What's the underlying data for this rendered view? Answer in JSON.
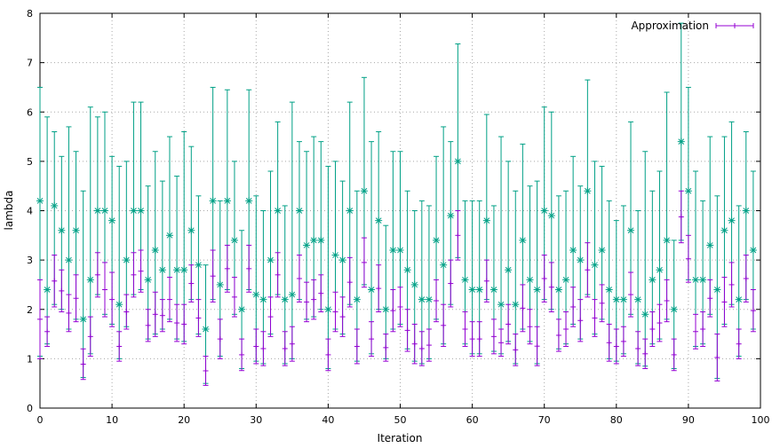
{
  "chart_data": {
    "type": "errorbar",
    "title": "",
    "xlabel": "Iteration",
    "ylabel": "lambda",
    "xlim": [
      0,
      100
    ],
    "ylim": [
      0,
      8
    ],
    "xticks": [
      0,
      10,
      20,
      30,
      40,
      50,
      60,
      70,
      80,
      90,
      100
    ],
    "yticks": [
      0,
      1,
      2,
      3,
      4,
      5,
      6,
      7,
      8
    ],
    "grid": true,
    "legend": {
      "label": "Approximation",
      "position": "top-right"
    },
    "colors": {
      "approximation": "#9400d3",
      "range_bars": "#00a086",
      "grid": "#a8a8a8",
      "axis": "#000000",
      "text": "#000000",
      "background": "#ffffff"
    },
    "series": [
      {
        "name": "range-errorbars",
        "marker": "asterisk",
        "color": "#00a086",
        "points_format": [
          "center",
          "low",
          "high"
        ],
        "points": [
          [
            4.2,
            1.05,
            6.5
          ],
          [
            2.4,
            1.3,
            5.9
          ],
          [
            4.1,
            2.1,
            5.6
          ],
          [
            3.6,
            2.0,
            5.1
          ],
          [
            3.0,
            1.6,
            5.7
          ],
          [
            3.6,
            1.8,
            5.2
          ],
          [
            1.8,
            0.62,
            4.4
          ],
          [
            2.6,
            1.1,
            6.1
          ],
          [
            4.0,
            2.3,
            5.9
          ],
          [
            4.0,
            1.9,
            6.0
          ],
          [
            3.8,
            1.7,
            5.1
          ],
          [
            2.1,
            1.0,
            4.9
          ],
          [
            3.0,
            1.65,
            5.0
          ],
          [
            4.0,
            2.3,
            6.2
          ],
          [
            4.0,
            2.4,
            6.2
          ],
          [
            2.6,
            1.4,
            4.5
          ],
          [
            3.2,
            1.5,
            5.2
          ],
          [
            2.8,
            1.6,
            4.6
          ],
          [
            3.5,
            1.8,
            5.5
          ],
          [
            2.8,
            1.4,
            4.7
          ],
          [
            2.8,
            1.35,
            5.6
          ],
          [
            3.6,
            2.2,
            5.3
          ],
          [
            2.9,
            1.5,
            4.3
          ],
          [
            1.6,
            0.5,
            2.9
          ],
          [
            4.2,
            2.2,
            6.5
          ],
          [
            2.5,
            1.05,
            4.2
          ],
          [
            4.2,
            2.4,
            6.45
          ],
          [
            3.4,
            1.9,
            5.0
          ],
          [
            2.0,
            0.8,
            3.6
          ],
          [
            4.2,
            2.4,
            6.45
          ],
          [
            2.3,
            0.95,
            4.3
          ],
          [
            2.2,
            0.9,
            4.0
          ],
          [
            3.0,
            1.5,
            4.8
          ],
          [
            4.0,
            2.3,
            5.8
          ],
          [
            2.2,
            0.9,
            4.1
          ],
          [
            2.3,
            1.0,
            6.2
          ],
          [
            4.0,
            2.2,
            5.4
          ],
          [
            3.3,
            1.8,
            5.2
          ],
          [
            3.4,
            1.85,
            5.5
          ],
          [
            3.4,
            2.0,
            5.4
          ],
          [
            2.0,
            0.8,
            4.9
          ],
          [
            3.1,
            1.6,
            5.0
          ],
          [
            3.0,
            1.5,
            4.6
          ],
          [
            4.0,
            2.1,
            6.2
          ],
          [
            2.2,
            0.95,
            4.4
          ],
          [
            4.4,
            2.5,
            6.7
          ],
          [
            2.4,
            1.1,
            5.4
          ],
          [
            3.8,
            2.0,
            5.6
          ],
          [
            2.0,
            1.0,
            3.7
          ],
          [
            3.2,
            1.6,
            5.2
          ],
          [
            3.2,
            1.7,
            5.2
          ],
          [
            2.8,
            1.2,
            4.4
          ],
          [
            2.5,
            0.95,
            4.0
          ],
          [
            2.2,
            0.9,
            4.2
          ],
          [
            2.2,
            1.0,
            4.1
          ],
          [
            3.4,
            1.8,
            5.1
          ],
          [
            2.9,
            1.3,
            5.7
          ],
          [
            3.9,
            2.1,
            5.4
          ],
          [
            5.0,
            3.05,
            7.38
          ],
          [
            2.6,
            1.3,
            4.2
          ],
          [
            2.4,
            1.1,
            4.2
          ],
          [
            2.4,
            1.1,
            4.2
          ],
          [
            3.8,
            2.2,
            5.95
          ],
          [
            2.4,
            1.15,
            4.1
          ],
          [
            2.1,
            1.1,
            5.5
          ],
          [
            2.8,
            1.35,
            5.0
          ],
          [
            2.1,
            0.9,
            4.4
          ],
          [
            3.4,
            1.6,
            5.35
          ],
          [
            2.6,
            1.35,
            4.5
          ],
          [
            2.4,
            0.9,
            4.6
          ],
          [
            4.0,
            2.2,
            6.1
          ],
          [
            3.9,
            2.0,
            6.0
          ],
          [
            2.4,
            1.2,
            4.3
          ],
          [
            2.6,
            1.3,
            4.4
          ],
          [
            3.2,
            1.7,
            5.1
          ],
          [
            3.0,
            1.4,
            4.5
          ],
          [
            4.4,
            2.3,
            6.65
          ],
          [
            2.9,
            1.5,
            5.0
          ],
          [
            3.2,
            1.8,
            4.9
          ],
          [
            2.4,
            1.0,
            4.2
          ],
          [
            2.2,
            0.95,
            3.8
          ],
          [
            2.2,
            1.1,
            4.1
          ],
          [
            3.6,
            1.9,
            5.8
          ],
          [
            2.2,
            0.9,
            4.0
          ],
          [
            1.9,
            0.85,
            5.2
          ],
          [
            2.6,
            1.3,
            4.4
          ],
          [
            2.8,
            1.4,
            4.8
          ],
          [
            3.4,
            1.8,
            6.4
          ],
          [
            2.0,
            0.8,
            3.4
          ],
          [
            5.4,
            3.4,
            7.8
          ],
          [
            4.4,
            2.6,
            6.5
          ],
          [
            2.6,
            1.25,
            4.8
          ],
          [
            2.6,
            1.3,
            4.2
          ],
          [
            3.3,
            1.9,
            5.5
          ],
          [
            2.4,
            0.6,
            4.3
          ],
          [
            3.6,
            1.7,
            5.5
          ],
          [
            3.8,
            2.1,
            5.8
          ],
          [
            2.2,
            1.05,
            4.1
          ],
          [
            4.0,
            2.2,
            5.6
          ],
          [
            3.2,
            1.6,
            4.8
          ]
        ]
      },
      {
        "name": "approximation-errorbars",
        "marker": "plus",
        "color": "#9400d3",
        "points_format": [
          "low",
          "high"
        ],
        "points": [
          [
            1.0,
            2.6
          ],
          [
            1.25,
            1.85
          ],
          [
            2.05,
            3.1
          ],
          [
            1.95,
            2.8
          ],
          [
            1.55,
            2.3
          ],
          [
            1.75,
            2.7
          ],
          [
            0.58,
            1.2
          ],
          [
            1.05,
            1.85
          ],
          [
            2.25,
            3.15
          ],
          [
            1.85,
            2.95
          ],
          [
            1.65,
            2.75
          ],
          [
            0.95,
            1.55
          ],
          [
            1.6,
            2.3
          ],
          [
            2.25,
            3.15
          ],
          [
            2.35,
            3.2
          ],
          [
            1.35,
            2.0
          ],
          [
            1.45,
            2.35
          ],
          [
            1.55,
            2.2
          ],
          [
            1.75,
            2.65
          ],
          [
            1.35,
            2.1
          ],
          [
            1.3,
            2.1
          ],
          [
            2.15,
            2.9
          ],
          [
            1.45,
            2.2
          ],
          [
            0.46,
            1.05
          ],
          [
            2.15,
            3.2
          ],
          [
            1.0,
            1.8
          ],
          [
            2.35,
            3.3
          ],
          [
            1.85,
            2.65
          ],
          [
            0.76,
            1.4
          ],
          [
            2.35,
            3.3
          ],
          [
            0.9,
            1.6
          ],
          [
            0.86,
            1.55
          ],
          [
            1.45,
            2.25
          ],
          [
            2.25,
            3.15
          ],
          [
            0.86,
            1.55
          ],
          [
            0.95,
            1.65
          ],
          [
            2.15,
            3.1
          ],
          [
            1.75,
            2.55
          ],
          [
            1.8,
            2.6
          ],
          [
            1.95,
            2.7
          ],
          [
            0.76,
            1.4
          ],
          [
            1.55,
            2.35
          ],
          [
            1.45,
            2.25
          ],
          [
            2.05,
            3.05
          ],
          [
            0.9,
            1.6
          ],
          [
            2.45,
            3.45
          ],
          [
            1.05,
            1.75
          ],
          [
            1.95,
            2.9
          ],
          [
            0.95,
            1.5
          ],
          [
            1.55,
            2.4
          ],
          [
            1.65,
            2.45
          ],
          [
            1.15,
            2.0
          ],
          [
            0.9,
            1.7
          ],
          [
            0.86,
            1.55
          ],
          [
            0.95,
            1.6
          ],
          [
            1.75,
            2.6
          ],
          [
            1.25,
            2.1
          ],
          [
            2.05,
            3.0
          ],
          [
            3.0,
            4.0
          ],
          [
            1.25,
            1.95
          ],
          [
            1.05,
            1.75
          ],
          [
            1.05,
            1.75
          ],
          [
            2.15,
            3.0
          ],
          [
            1.1,
            1.8
          ],
          [
            1.05,
            1.6
          ],
          [
            1.3,
            2.1
          ],
          [
            0.86,
            1.5
          ],
          [
            1.55,
            2.5
          ],
          [
            1.3,
            2.0
          ],
          [
            0.86,
            1.65
          ],
          [
            2.15,
            3.1
          ],
          [
            1.95,
            2.95
          ],
          [
            1.15,
            1.8
          ],
          [
            1.25,
            1.95
          ],
          [
            1.65,
            2.45
          ],
          [
            1.35,
            2.2
          ],
          [
            2.25,
            3.35
          ],
          [
            1.45,
            2.2
          ],
          [
            1.75,
            2.5
          ],
          [
            0.95,
            1.7
          ],
          [
            0.9,
            1.6
          ],
          [
            1.05,
            1.65
          ],
          [
            1.85,
            2.75
          ],
          [
            0.86,
            1.55
          ],
          [
            0.8,
            1.4
          ],
          [
            1.25,
            1.95
          ],
          [
            1.35,
            2.1
          ],
          [
            1.75,
            2.6
          ],
          [
            0.76,
            1.4
          ],
          [
            3.35,
            4.4
          ],
          [
            2.55,
            3.5
          ],
          [
            1.2,
            1.9
          ],
          [
            1.25,
            1.95
          ],
          [
            1.85,
            2.6
          ],
          [
            0.55,
            1.5
          ],
          [
            1.65,
            2.65
          ],
          [
            2.05,
            2.95
          ],
          [
            1.0,
            1.6
          ],
          [
            2.15,
            3.1
          ],
          [
            1.55,
            2.4
          ]
        ]
      }
    ]
  }
}
